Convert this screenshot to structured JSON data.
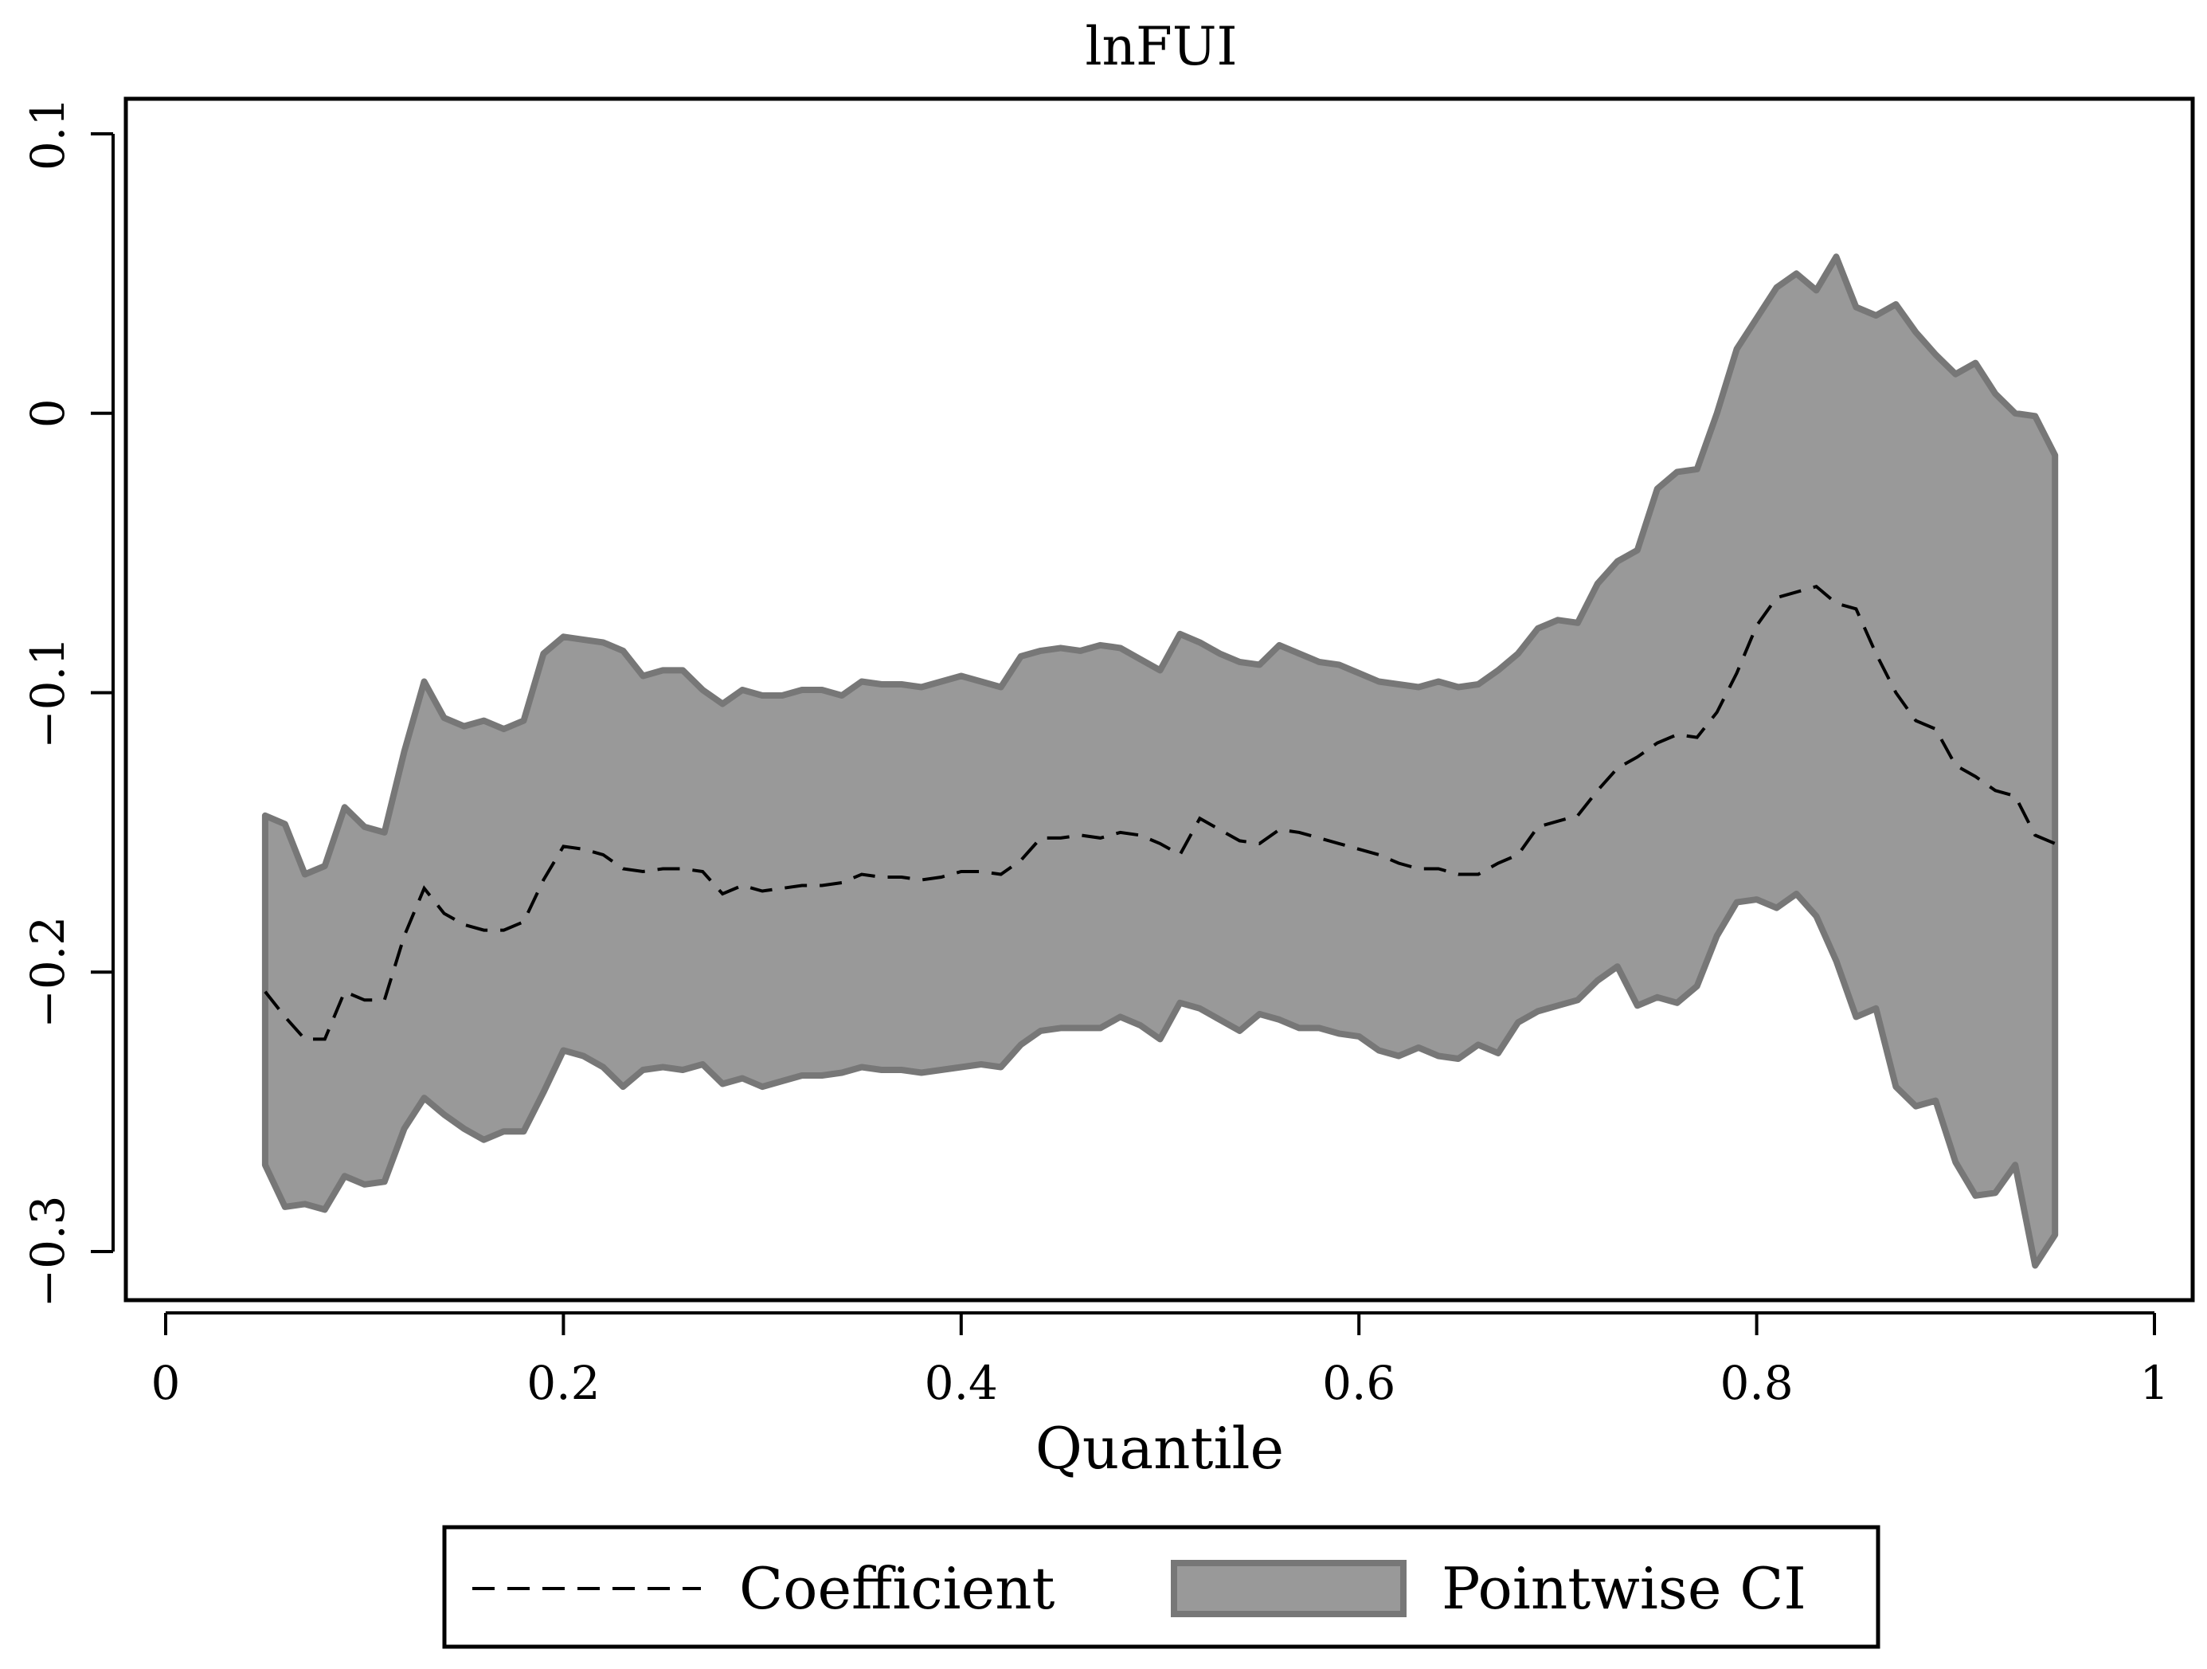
{
  "chart_data": {
    "type": "area",
    "title": "lnFUI",
    "xlabel": "Quantile",
    "ylabel": "",
    "xlim": [
      0,
      1
    ],
    "ylim": [
      -0.32,
      0.115
    ],
    "xticks": [
      0,
      0.2,
      0.4,
      0.6,
      0.8,
      1
    ],
    "xtick_labels": [
      "0",
      "0.2",
      "0.4",
      "0.6",
      "0.8",
      "1"
    ],
    "yticks": [
      0.1,
      0,
      -0.1,
      -0.2,
      -0.3
    ],
    "ytick_labels": [
      "0.1",
      "0",
      "−0.1",
      "−0.2",
      "−0.3"
    ],
    "grid": false,
    "legend_position": "bottom",
    "x": [
      0.05,
      0.06,
      0.07,
      0.08,
      0.09,
      0.1,
      0.11,
      0.12,
      0.13,
      0.14,
      0.15,
      0.16,
      0.17,
      0.18,
      0.19,
      0.2,
      0.21,
      0.22,
      0.23,
      0.24,
      0.25,
      0.26,
      0.27,
      0.28,
      0.29,
      0.3,
      0.31,
      0.32,
      0.33,
      0.34,
      0.35,
      0.36,
      0.37,
      0.38,
      0.39,
      0.4,
      0.41,
      0.42,
      0.43,
      0.44,
      0.45,
      0.46,
      0.47,
      0.48,
      0.49,
      0.5,
      0.51,
      0.52,
      0.53,
      0.54,
      0.55,
      0.56,
      0.57,
      0.58,
      0.59,
      0.6,
      0.61,
      0.62,
      0.63,
      0.64,
      0.65,
      0.66,
      0.67,
      0.68,
      0.69,
      0.7,
      0.71,
      0.72,
      0.73,
      0.74,
      0.75,
      0.76,
      0.77,
      0.78,
      0.79,
      0.8,
      0.81,
      0.82,
      0.83,
      0.84,
      0.85,
      0.86,
      0.87,
      0.88,
      0.89,
      0.9,
      0.91,
      0.92,
      0.93,
      0.94,
      0.95
    ],
    "series": [
      {
        "name": "Coefficient",
        "style": "dashed",
        "color": "#000000",
        "values": [
          -0.207,
          -0.216,
          -0.224,
          -0.224,
          -0.207,
          -0.21,
          -0.21,
          -0.187,
          -0.17,
          -0.179,
          -0.183,
          -0.185,
          -0.185,
          -0.182,
          -0.167,
          -0.155,
          -0.156,
          -0.158,
          -0.163,
          -0.164,
          -0.163,
          -0.163,
          -0.164,
          -0.172,
          -0.169,
          -0.171,
          -0.17,
          -0.169,
          -0.169,
          -0.168,
          -0.165,
          -0.166,
          -0.166,
          -0.167,
          -0.166,
          -0.164,
          -0.164,
          -0.165,
          -0.16,
          -0.152,
          -0.152,
          -0.151,
          -0.152,
          -0.15,
          -0.151,
          -0.154,
          -0.158,
          -0.145,
          -0.149,
          -0.153,
          -0.154,
          -0.149,
          -0.15,
          -0.152,
          -0.154,
          -0.156,
          -0.158,
          -0.161,
          -0.163,
          -0.163,
          -0.165,
          -0.165,
          -0.161,
          -0.158,
          -0.148,
          -0.146,
          -0.144,
          -0.135,
          -0.127,
          -0.123,
          -0.118,
          -0.115,
          -0.116,
          -0.107,
          -0.093,
          -0.076,
          -0.066,
          -0.064,
          -0.062,
          -0.068,
          -0.07,
          -0.086,
          -0.1,
          -0.11,
          -0.113,
          -0.126,
          -0.13,
          -0.135,
          -0.137,
          -0.151,
          -0.154
        ]
      },
      {
        "name": "Pointwise CI",
        "style": "band",
        "color": "#999999",
        "edge_color": "#777777",
        "upper": [
          -0.144,
          -0.147,
          -0.165,
          -0.162,
          -0.141,
          -0.148,
          -0.15,
          -0.121,
          -0.096,
          -0.109,
          -0.112,
          -0.11,
          -0.113,
          -0.11,
          -0.086,
          -0.08,
          -0.081,
          -0.082,
          -0.085,
          -0.094,
          -0.092,
          -0.092,
          -0.099,
          -0.104,
          -0.099,
          -0.101,
          -0.101,
          -0.099,
          -0.099,
          -0.101,
          -0.096,
          -0.097,
          -0.097,
          -0.098,
          -0.096,
          -0.094,
          -0.096,
          -0.098,
          -0.087,
          -0.085,
          -0.084,
          -0.085,
          -0.083,
          -0.084,
          -0.088,
          -0.092,
          -0.079,
          -0.082,
          -0.086,
          -0.089,
          -0.09,
          -0.083,
          -0.086,
          -0.089,
          -0.09,
          -0.093,
          -0.096,
          -0.097,
          -0.098,
          -0.096,
          -0.098,
          -0.097,
          -0.092,
          -0.086,
          -0.077,
          -0.074,
          -0.075,
          -0.061,
          -0.053,
          -0.049,
          -0.027,
          -0.021,
          -0.02,
          0.0,
          0.023,
          0.034,
          0.045,
          0.05,
          0.044,
          0.056,
          0.038,
          0.035,
          0.039,
          0.029,
          0.021,
          0.014,
          0.018,
          0.007,
          0.0,
          -0.001,
          -0.015
        ],
        "lower": [
          -0.269,
          -0.284,
          -0.283,
          -0.285,
          -0.273,
          -0.276,
          -0.275,
          -0.256,
          -0.245,
          -0.251,
          -0.256,
          -0.26,
          -0.257,
          -0.257,
          -0.243,
          -0.228,
          -0.23,
          -0.234,
          -0.241,
          -0.235,
          -0.234,
          -0.235,
          -0.233,
          -0.24,
          -0.238,
          -0.241,
          -0.239,
          -0.237,
          -0.237,
          -0.236,
          -0.234,
          -0.235,
          -0.235,
          -0.236,
          -0.235,
          -0.234,
          -0.233,
          -0.234,
          -0.226,
          -0.221,
          -0.22,
          -0.22,
          -0.22,
          -0.216,
          -0.219,
          -0.224,
          -0.211,
          -0.213,
          -0.217,
          -0.221,
          -0.215,
          -0.217,
          -0.22,
          -0.22,
          -0.222,
          -0.223,
          -0.228,
          -0.23,
          -0.227,
          -0.23,
          -0.231,
          -0.226,
          -0.229,
          -0.218,
          -0.214,
          -0.212,
          -0.21,
          -0.203,
          -0.198,
          -0.212,
          -0.209,
          -0.211,
          -0.205,
          -0.187,
          -0.175,
          -0.174,
          -0.177,
          -0.172,
          -0.18,
          -0.196,
          -0.216,
          -0.213,
          -0.241,
          -0.248,
          -0.246,
          -0.268,
          -0.28,
          -0.279,
          -0.269,
          -0.305,
          -0.294
        ]
      }
    ]
  },
  "legend": {
    "items": [
      {
        "label": "Coefficient"
      },
      {
        "label": "Pointwise CI"
      }
    ]
  }
}
